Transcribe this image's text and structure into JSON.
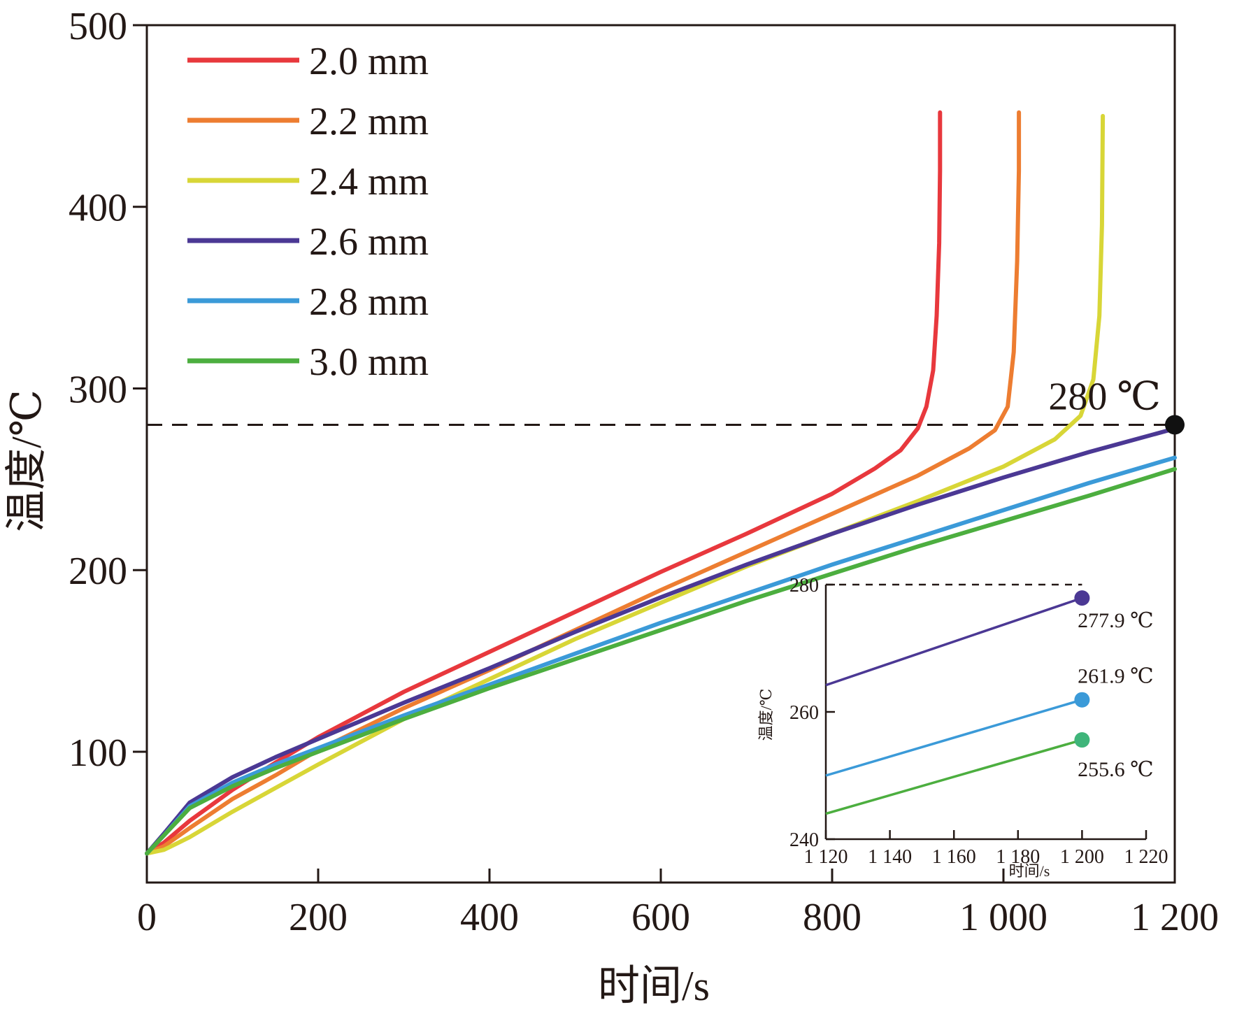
{
  "chart_data": [
    {
      "type": "line",
      "xlabel": "时间/s",
      "ylabel": "温度/℃",
      "xlim": [
        0,
        1200
      ],
      "ylim": [
        28,
        500
      ],
      "xticks": [
        0,
        200,
        400,
        600,
        800,
        1000,
        1200
      ],
      "xtick_labels": [
        "0",
        "200",
        "400",
        "600",
        "800",
        "1 000",
        "1 200"
      ],
      "yticks": [
        100,
        200,
        300,
        400,
        500
      ],
      "ytick_labels": [
        "100",
        "200",
        "300",
        "400",
        "500"
      ],
      "legend_position": "top-left",
      "grid": false,
      "reference_line": {
        "y": 280,
        "style": "dashed"
      },
      "annotations": [
        {
          "text": "280 ℃",
          "x": 1200,
          "y": 280,
          "marker": "filled-circle"
        }
      ],
      "series": [
        {
          "name": "2.0 mm",
          "color": "#e8383d",
          "points": [
            [
              0,
              44
            ],
            [
              20,
              50
            ],
            [
              50,
              62
            ],
            [
              100,
              79
            ],
            [
              150,
              94
            ],
            [
              200,
              108
            ],
            [
              300,
              133
            ],
            [
              400,
              155
            ],
            [
              500,
              177
            ],
            [
              600,
              199
            ],
            [
              700,
              220
            ],
            [
              800,
              242
            ],
            [
              850,
              256
            ],
            [
              880,
              266
            ],
            [
              900,
              278
            ],
            [
              910,
              290
            ],
            [
              918,
              310
            ],
            [
              922,
              340
            ],
            [
              925,
              380
            ],
            [
              926,
              420
            ],
            [
              926,
              452
            ]
          ]
        },
        {
          "name": "2.2 mm",
          "color": "#ed7d31",
          "points": [
            [
              0,
              44
            ],
            [
              20,
              48
            ],
            [
              50,
              58
            ],
            [
              100,
              74
            ],
            [
              150,
              87
            ],
            [
              200,
              101
            ],
            [
              300,
              124
            ],
            [
              400,
              145
            ],
            [
              500,
              167
            ],
            [
              600,
              189
            ],
            [
              700,
              210
            ],
            [
              800,
              231
            ],
            [
              900,
              252
            ],
            [
              960,
              267
            ],
            [
              990,
              277
            ],
            [
              1005,
              290
            ],
            [
              1012,
              320
            ],
            [
              1016,
              370
            ],
            [
              1018,
              420
            ],
            [
              1018,
              452
            ]
          ]
        },
        {
          "name": "2.4 mm",
          "color": "#d8d637",
          "points": [
            [
              0,
              44
            ],
            [
              20,
              46
            ],
            [
              50,
              53
            ],
            [
              100,
              67
            ],
            [
              150,
              80
            ],
            [
              200,
              93
            ],
            [
              300,
              118
            ],
            [
              400,
              140
            ],
            [
              500,
              162
            ],
            [
              600,
              182
            ],
            [
              700,
              202
            ],
            [
              800,
              220
            ],
            [
              900,
              238
            ],
            [
              1000,
              257
            ],
            [
              1060,
              272
            ],
            [
              1090,
              285
            ],
            [
              1105,
              305
            ],
            [
              1112,
              340
            ],
            [
              1115,
              390
            ],
            [
              1116,
              450
            ]
          ]
        },
        {
          "name": "2.6 mm",
          "color": "#4b3894",
          "points": [
            [
              0,
              44
            ],
            [
              20,
              55
            ],
            [
              50,
              72
            ],
            [
              100,
              86
            ],
            [
              150,
              97
            ],
            [
              200,
              107
            ],
            [
              300,
              127
            ],
            [
              400,
              146
            ],
            [
              500,
              166
            ],
            [
              600,
              185
            ],
            [
              700,
              203
            ],
            [
              800,
              220
            ],
            [
              900,
              236
            ],
            [
              1000,
              251
            ],
            [
              1100,
              265
            ],
            [
              1200,
              277.9
            ]
          ]
        },
        {
          "name": "2.8 mm",
          "color": "#3b9ad8",
          "points": [
            [
              0,
              44
            ],
            [
              20,
              54
            ],
            [
              50,
              70
            ],
            [
              100,
              83
            ],
            [
              150,
              93
            ],
            [
              200,
              102
            ],
            [
              300,
              120
            ],
            [
              400,
              137
            ],
            [
              500,
              154
            ],
            [
              600,
              171
            ],
            [
              700,
              187
            ],
            [
              800,
              203
            ],
            [
              900,
              218
            ],
            [
              1000,
              233
            ],
            [
              1100,
              248
            ],
            [
              1200,
              261.9
            ]
          ]
        },
        {
          "name": "3.0 mm",
          "color": "#4cae3f",
          "points": [
            [
              0,
              44
            ],
            [
              20,
              54
            ],
            [
              50,
              69
            ],
            [
              100,
              81
            ],
            [
              150,
              91
            ],
            [
              200,
              100
            ],
            [
              300,
              118
            ],
            [
              400,
              135
            ],
            [
              500,
              151
            ],
            [
              600,
              167
            ],
            [
              700,
              183
            ],
            [
              800,
              198
            ],
            [
              900,
              213
            ],
            [
              1000,
              227
            ],
            [
              1100,
              241
            ],
            [
              1200,
              255.6
            ]
          ]
        }
      ]
    },
    {
      "type": "line",
      "xlabel": "时间/s",
      "ylabel": "温度/℃",
      "xlim": [
        1120,
        1220
      ],
      "ylim": [
        240,
        280
      ],
      "xticks": [
        1120,
        1140,
        1160,
        1180,
        1200,
        1220
      ],
      "xtick_labels": [
        "1 120",
        "1 140",
        "1 160",
        "1 180",
        "1 200",
        "1 220"
      ],
      "yticks": [
        240,
        260,
        280
      ],
      "ytick_labels": [
        "240",
        "260",
        "280"
      ],
      "reference_line": {
        "y": 280,
        "style": "dashed"
      },
      "series": [
        {
          "color": "#4b3894",
          "marker_color": "#4b3894",
          "points": [
            [
              1120,
              264.2
            ],
            [
              1200,
              277.9
            ]
          ],
          "label": "277.9 ℃"
        },
        {
          "color": "#3b9ad8",
          "marker_color": "#3b9ad8",
          "points": [
            [
              1120,
              250
            ],
            [
              1200,
              261.9
            ]
          ],
          "label": "261.9 ℃"
        },
        {
          "color": "#4cae3f",
          "marker_color": "#3fb57a",
          "points": [
            [
              1120,
              244
            ],
            [
              1200,
              255.6
            ]
          ],
          "label": "255.6 ℃"
        }
      ]
    }
  ]
}
